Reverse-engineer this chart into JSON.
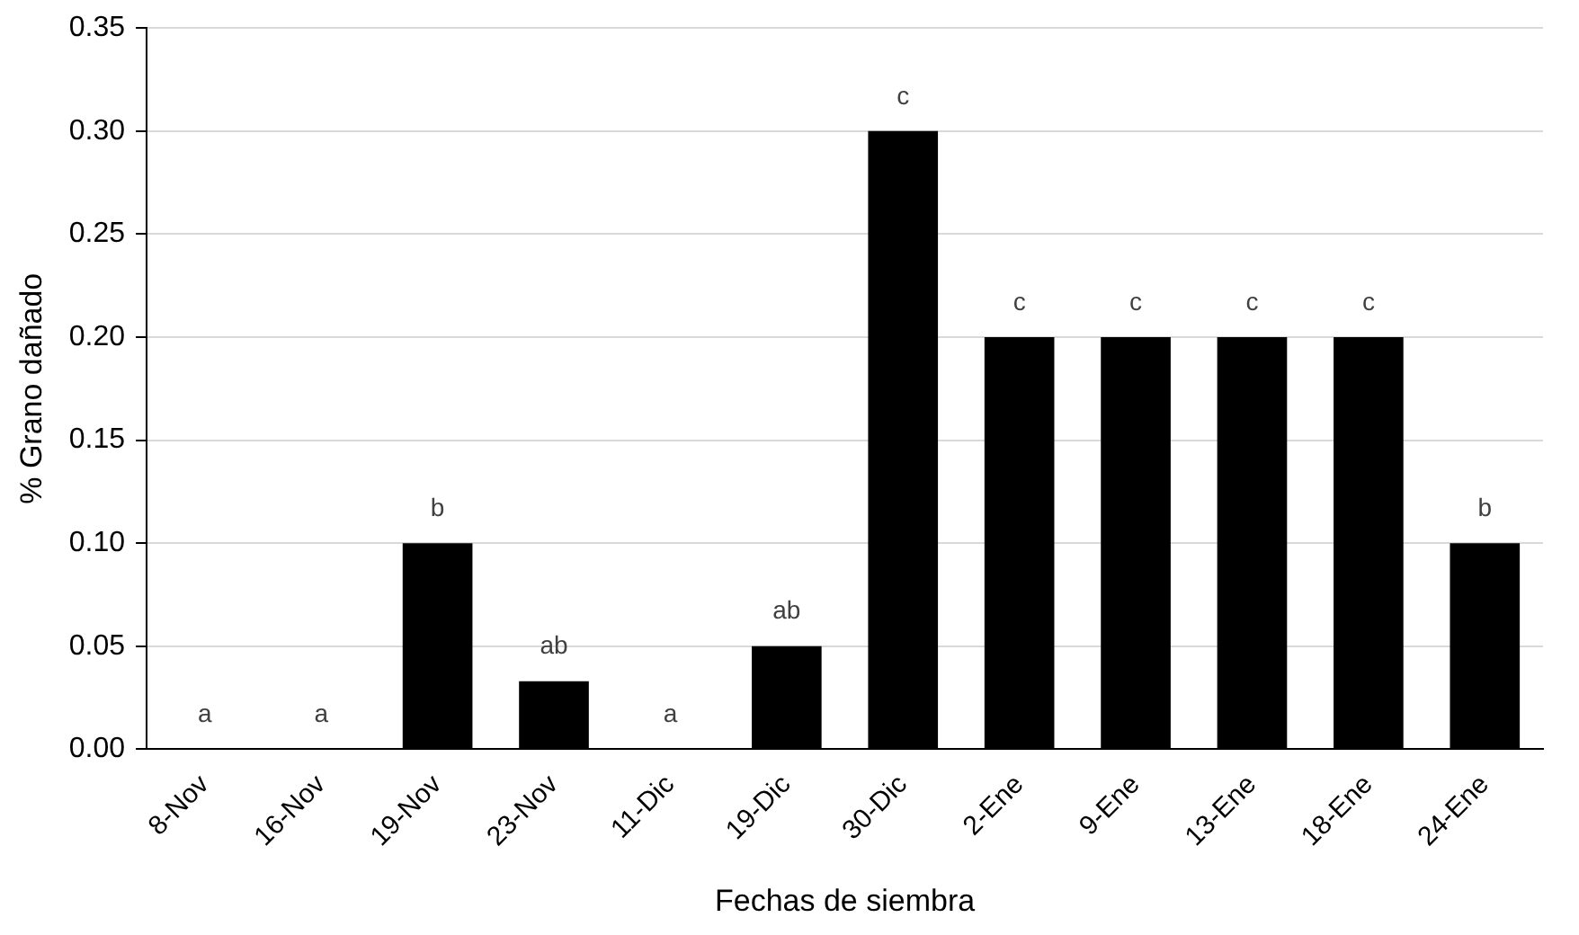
{
  "chart_data": {
    "type": "bar",
    "xlabel": "Fechas de siembra",
    "ylabel": "% Grano dañado",
    "categories": [
      "8-Nov",
      "16-Nov",
      "19-Nov",
      "23-Nov",
      "11-Dic",
      "19-Dic",
      "30-Dic",
      "2-Ene",
      "9-Ene",
      "13-Ene",
      "18-Ene",
      "24-Ene"
    ],
    "values": [
      0,
      0,
      0.1,
      0.033,
      0,
      0.05,
      0.3,
      0.2,
      0.2,
      0.2,
      0.2,
      0.1
    ],
    "color": "#000000",
    "ylim": [
      0,
      0.35
    ],
    "yticks": [
      {
        "value": 0,
        "label": "0.00"
      },
      {
        "value": 0.05,
        "label": "0.05"
      },
      {
        "value": 0.1,
        "label": "0.10"
      },
      {
        "value": 0.15,
        "label": "0.15"
      },
      {
        "value": 0.2,
        "label": "0.20"
      },
      {
        "value": 0.25,
        "label": "0.25"
      },
      {
        "value": 0.3,
        "label": "0.30"
      },
      {
        "value": 0.35,
        "label": "0.35"
      }
    ],
    "grid": "y",
    "legend": false,
    "annotations": [
      {
        "text": "a",
        "x": "8-Nov",
        "y": 0
      },
      {
        "text": "a",
        "x": "16-Nov",
        "y": 0
      },
      {
        "text": "b",
        "x": "19-Nov",
        "y": 0.1
      },
      {
        "text": "ab",
        "x": "23-Nov",
        "y": 0.033
      },
      {
        "text": "a",
        "x": "11-Dic",
        "y": 0
      },
      {
        "text": "ab",
        "x": "19-Dic",
        "y": 0.05
      },
      {
        "text": "c",
        "x": "30-Dic",
        "y": 0.3
      },
      {
        "text": "c",
        "x": "2-Ene",
        "y": 0.2
      },
      {
        "text": "c",
        "x": "9-Ene",
        "y": 0.2
      },
      {
        "text": "c",
        "x": "13-Ene",
        "y": 0.2
      },
      {
        "text": "c",
        "x": "18-Ene",
        "y": 0.2
      },
      {
        "text": "b",
        "x": "24-Ene",
        "y": 0.1
      }
    ]
  }
}
